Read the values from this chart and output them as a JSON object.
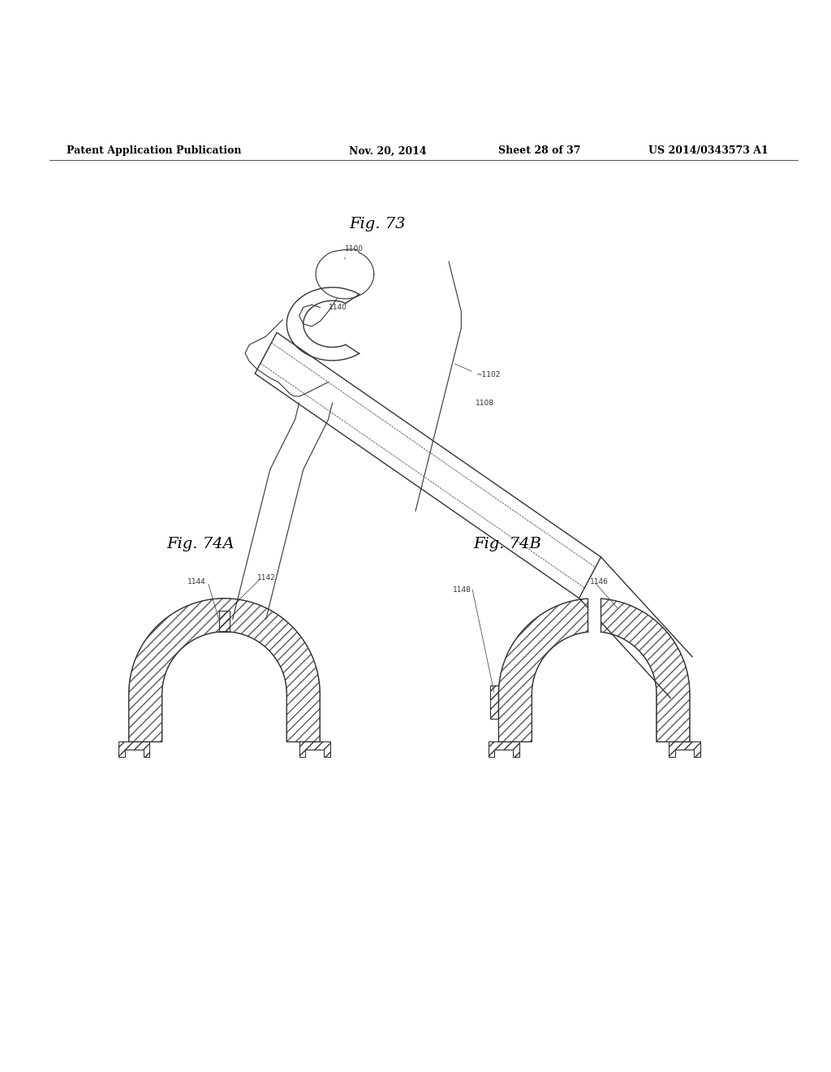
{
  "background_color": "#ffffff",
  "header_text": "Patent Application Publication",
  "header_date": "Nov. 20, 2014",
  "header_sheet": "Sheet 28 of 37",
  "header_patent": "US 2014/0343573 A1",
  "fig73_label": "Fig. 73",
  "fig74a_label": "Fig. 74A",
  "fig74b_label": "Fig. 74B",
  "line_color": "#333333",
  "font_size_header": 9,
  "font_size_fig": 13,
  "font_size_label": 7
}
